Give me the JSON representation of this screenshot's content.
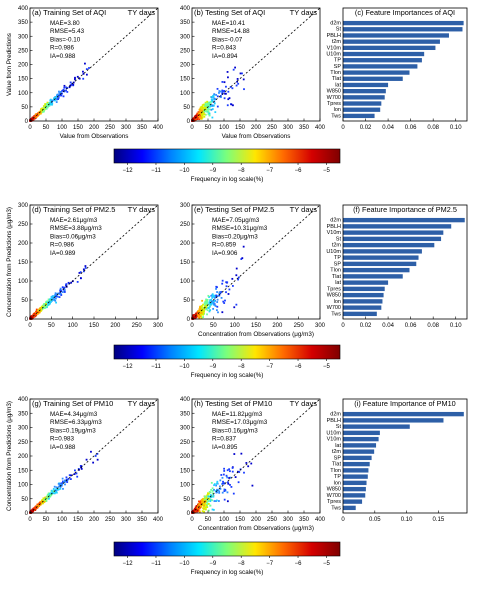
{
  "cbar_ticks": [
    "−12",
    "−11",
    "−10",
    "−9",
    "−8",
    "−7",
    "−6",
    "−5"
  ],
  "cbar_colors": [
    "#00007f",
    "#0000ff",
    "#0080ff",
    "#00e6ff",
    "#7dff7a",
    "#ffe600",
    "#ff6a00",
    "#d40000",
    "#7f0000"
  ],
  "cbar_labels": [
    "Frequency in log scale(%)",
    "Frequency in log scale(%)",
    "Frequency in log scale(%)"
  ],
  "scatter_color": "#3a6fe0",
  "bar_color": "#2d5fa7",
  "chart_data": [
    {
      "type": "scatter",
      "panel": "(a)",
      "title": "(a) Training Set of AQI",
      "tag": "TY days",
      "xlabel": "Value from Observations",
      "ylabel": "Value from Predictions",
      "xlim": [
        0,
        400
      ],
      "ylim": [
        0,
        400
      ],
      "xticks": [
        0,
        50,
        100,
        150,
        200,
        250,
        300,
        350,
        400
      ],
      "yticks": [
        0,
        50,
        100,
        150,
        200,
        250,
        300,
        350,
        400
      ],
      "stats": [
        "MAE=3.80",
        "RMSE=5.43",
        "Bias=-0.10",
        "R=0.986",
        "IA=0.988"
      ],
      "spread": 0.07,
      "xmax": 180
    },
    {
      "type": "scatter",
      "panel": "(b)",
      "title": "(b) Testing Set of AQI",
      "tag": "TY days",
      "xlabel": "Value from Observations",
      "ylabel": "",
      "xlim": [
        0,
        400
      ],
      "ylim": [
        0,
        400
      ],
      "xticks": [
        0,
        50,
        100,
        150,
        200,
        250,
        300,
        350,
        400
      ],
      "yticks": [
        0,
        50,
        100,
        150,
        200,
        250,
        300,
        350,
        400
      ],
      "stats": [
        "MAE=10.41",
        "RMSE=14.88",
        "Bias=-0.07",
        "R=0.843",
        "IA=0.894"
      ],
      "spread": 0.3,
      "xmax": 170
    },
    {
      "type": "bar",
      "panel": "(c)",
      "title": "(c) Feature Importances of AQI",
      "categories": [
        "d2m",
        "St",
        "PBLH",
        "t2m",
        "V10m",
        "U10m",
        "TP",
        "SP",
        "Tlon",
        "Tlat",
        "lat",
        "W850",
        "W700",
        "Tpres",
        "lon",
        "Tws"
      ],
      "values": [
        0.107,
        0.106,
        0.094,
        0.086,
        0.082,
        0.072,
        0.07,
        0.066,
        0.059,
        0.053,
        0.04,
        0.038,
        0.037,
        0.034,
        0.033,
        0.028
      ],
      "xlim": [
        0,
        0.11
      ],
      "xticks": [
        0,
        0.02,
        0.04,
        0.06,
        0.08,
        0.1
      ],
      "xticklabels": [
        "0",
        "0.02",
        "0.04",
        "0.06",
        "0.08",
        "0.10"
      ]
    },
    {
      "type": "scatter",
      "panel": "(d)",
      "title": "(d) Training Set of PM2.5",
      "tag": "TY days",
      "xlabel": "",
      "ylabel": "Concentration from Predictions (μg/m3)",
      "xlim": [
        0,
        300
      ],
      "ylim": [
        0,
        300
      ],
      "xticks": [
        0,
        50,
        100,
        150,
        200,
        250,
        300
      ],
      "yticks": [
        0,
        50,
        100,
        150,
        200,
        250,
        300
      ],
      "stats": [
        "MAE=2.61μg/m3",
        "RMSE=3.88μg/m3",
        "Bias=0.06μg/m3",
        "R=0.986",
        "IA=0.989"
      ],
      "spread": 0.07,
      "xmax": 130
    },
    {
      "type": "scatter",
      "panel": "(e)",
      "title": "(e) Testing Set of PM2.5",
      "tag": "TY days",
      "xlabel": "Concentration from Observations (μg/m3)",
      "ylabel": "",
      "xlim": [
        0,
        300
      ],
      "ylim": [
        0,
        300
      ],
      "xticks": [
        0,
        50,
        100,
        150,
        200,
        250,
        300
      ],
      "yticks": [
        0,
        50,
        100,
        150,
        200,
        250,
        300
      ],
      "stats": [
        "MAE=7.05μg/m3",
        "RMSE=10.31μg/m3",
        "Bias=0.20μg/m3",
        "R=0.859",
        "IA=0.906"
      ],
      "spread": 0.3,
      "xmax": 120
    },
    {
      "type": "bar",
      "panel": "(f)",
      "title": "(f) Feature Importance of PM2.5",
      "categories": [
        "d2m",
        "PBLH",
        "V10m",
        "St",
        "t2m",
        "U10m",
        "TP",
        "SP",
        "Tlon",
        "Tlat",
        "lat",
        "Tpres",
        "W850",
        "lon",
        "W700",
        "Tws"
      ],
      "values": [
        0.108,
        0.096,
        0.089,
        0.087,
        0.081,
        0.07,
        0.067,
        0.065,
        0.059,
        0.053,
        0.04,
        0.037,
        0.036,
        0.035,
        0.034,
        0.03
      ],
      "xlim": [
        0,
        0.11
      ],
      "xticks": [
        0,
        0.02,
        0.04,
        0.06,
        0.08,
        0.1
      ],
      "xticklabels": [
        "0",
        "0.02",
        "0.04",
        "0.06",
        "0.08",
        "0.10"
      ]
    },
    {
      "type": "scatter",
      "panel": "(g)",
      "title": "(g) Training Set of PM10",
      "tag": "TY days",
      "xlabel": "",
      "ylabel": "Concentration from Predictions (μg/m3)",
      "xlim": [
        0,
        400
      ],
      "ylim": [
        0,
        400
      ],
      "xticks": [
        0,
        50,
        100,
        150,
        200,
        250,
        300,
        350,
        400
      ],
      "yticks": [
        0,
        50,
        100,
        150,
        200,
        250,
        300,
        350,
        400
      ],
      "stats": [
        "MAE=4.34μg/m3",
        "RMSE=6.33μg/m3",
        "Bias=0.19μg/m3",
        "R=0.983",
        "IA=0.988"
      ],
      "spread": 0.07,
      "xmax": 210
    },
    {
      "type": "scatter",
      "panel": "(h)",
      "title": "(h) Testing Set of PM10",
      "tag": "TY days",
      "xlabel": "Concentration from Observations (μg/m3)",
      "ylabel": "",
      "xlim": [
        0,
        400
      ],
      "ylim": [
        0,
        400
      ],
      "xticks": [
        0,
        50,
        100,
        150,
        200,
        250,
        300,
        350,
        400
      ],
      "yticks": [
        0,
        50,
        100,
        150,
        200,
        250,
        300,
        350,
        400
      ],
      "stats": [
        "MAE=11.82μg/m3",
        "RMSE=17.03μg/m3",
        "Bias=0.16μg/m3",
        "R=0.837",
        "IA=0.895"
      ],
      "spread": 0.3,
      "xmax": 190
    },
    {
      "type": "bar",
      "panel": "(i)",
      "title": "(i) Feature Importance of PM10",
      "categories": [
        "d2m",
        "PBLH",
        "St",
        "U10m",
        "V10m",
        "lat",
        "t2m",
        "SP",
        "Tlat",
        "Tlon",
        "TP",
        "lon",
        "W850",
        "W700",
        "Tpres",
        "Tws"
      ],
      "values": [
        0.19,
        0.158,
        0.105,
        0.058,
        0.056,
        0.052,
        0.049,
        0.045,
        0.042,
        0.04,
        0.039,
        0.037,
        0.036,
        0.035,
        0.03,
        0.02
      ],
      "xlim": [
        0,
        0.195
      ],
      "xticks": [
        0,
        0.05,
        0.1,
        0.15
      ],
      "xticklabels": [
        "0",
        "0.05",
        "0.10",
        "0.15"
      ]
    }
  ]
}
